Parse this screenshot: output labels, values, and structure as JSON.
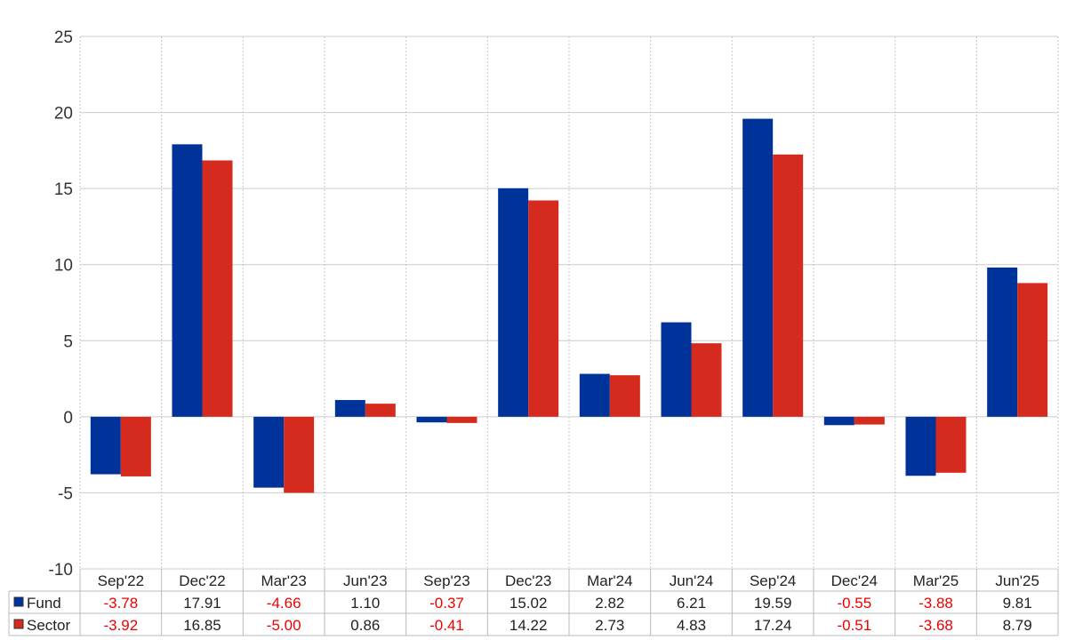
{
  "chart_data": {
    "type": "bar",
    "categories": [
      "Sep'22",
      "Dec'22",
      "Mar'23",
      "Jun'23",
      "Sep'23",
      "Dec'23",
      "Mar'24",
      "Jun'24",
      "Sep'24",
      "Dec'24",
      "Mar'25",
      "Jun'25"
    ],
    "series": [
      {
        "name": "Fund",
        "color": "#003399",
        "values": [
          -3.78,
          17.91,
          -4.66,
          1.1,
          -0.37,
          15.02,
          2.82,
          6.21,
          19.59,
          -0.55,
          -3.88,
          9.81
        ]
      },
      {
        "name": "Sector",
        "color": "#d52b1e",
        "values": [
          -3.92,
          16.85,
          -5.0,
          0.86,
          -0.41,
          14.22,
          2.73,
          4.83,
          17.24,
          -0.51,
          -3.68,
          8.79
        ]
      }
    ],
    "ylim": [
      -10,
      25
    ],
    "yticks": [
      -10,
      -5,
      0,
      5,
      10,
      15,
      20,
      25
    ],
    "grid": true,
    "legend": "bottom-table",
    "negative_value_color": "#ee0000"
  }
}
